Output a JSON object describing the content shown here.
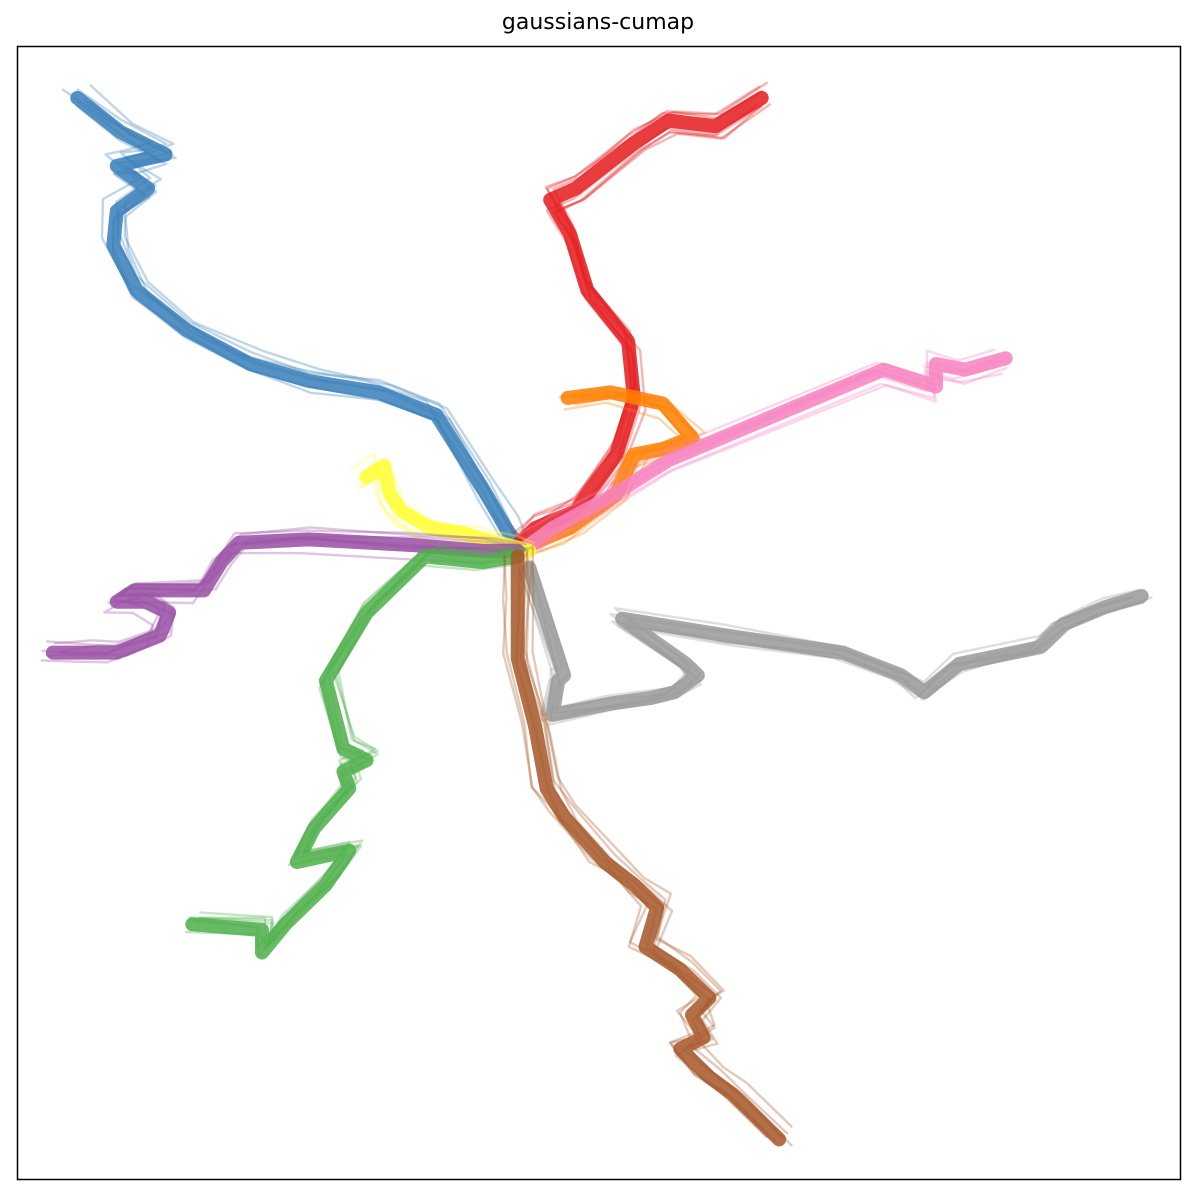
{
  "chart_data": {
    "type": "line",
    "title": "gaussians-cumap",
    "xlabel": "",
    "ylabel": "",
    "xlim": [
      0,
      1
    ],
    "ylim": [
      0,
      1
    ],
    "axis_ticks": false,
    "grid": false,
    "legend": "none",
    "bundle": {
      "strands_per_series": 7,
      "spread": 0.011,
      "width": 2.4,
      "opacity": 0.32
    },
    "series": [
      {
        "color": "#377eb8",
        "points": [
          [
            0.051,
            0.955
          ],
          [
            0.088,
            0.925
          ],
          [
            0.127,
            0.905
          ],
          [
            0.105,
            0.9
          ],
          [
            0.085,
            0.895
          ],
          [
            0.112,
            0.875
          ],
          [
            0.085,
            0.855
          ],
          [
            0.082,
            0.825
          ],
          [
            0.102,
            0.785
          ],
          [
            0.145,
            0.75
          ],
          [
            0.2,
            0.72
          ],
          [
            0.25,
            0.705
          ],
          [
            0.31,
            0.695
          ],
          [
            0.36,
            0.675
          ],
          [
            0.4,
            0.61
          ],
          [
            0.42,
            0.575
          ],
          [
            0.43,
            0.56
          ]
        ]
      },
      {
        "color": "#e41a1c",
        "points": [
          [
            0.64,
            0.955
          ],
          [
            0.6,
            0.93
          ],
          [
            0.56,
            0.935
          ],
          [
            0.53,
            0.915
          ],
          [
            0.48,
            0.875
          ],
          [
            0.458,
            0.865
          ],
          [
            0.475,
            0.835
          ],
          [
            0.49,
            0.785
          ],
          [
            0.525,
            0.74
          ],
          [
            0.53,
            0.69
          ],
          [
            0.515,
            0.64
          ],
          [
            0.48,
            0.59
          ],
          [
            0.445,
            0.575
          ],
          [
            0.43,
            0.56
          ]
        ]
      },
      {
        "color": "#ff7f00",
        "points": [
          [
            0.473,
            0.69
          ],
          [
            0.51,
            0.695
          ],
          [
            0.555,
            0.685
          ],
          [
            0.58,
            0.655
          ],
          [
            0.555,
            0.645
          ],
          [
            0.53,
            0.64
          ],
          [
            0.515,
            0.605
          ],
          [
            0.475,
            0.575
          ],
          [
            0.44,
            0.56
          ]
        ]
      },
      {
        "color": "#f781bf",
        "points": [
          [
            0.85,
            0.725
          ],
          [
            0.815,
            0.715
          ],
          [
            0.79,
            0.72
          ],
          [
            0.79,
            0.7
          ],
          [
            0.745,
            0.715
          ],
          [
            0.56,
            0.635
          ],
          [
            0.505,
            0.6
          ],
          [
            0.46,
            0.575
          ],
          [
            0.44,
            0.56
          ]
        ]
      },
      {
        "color": "#ffff33",
        "points": [
          [
            0.3,
            0.62
          ],
          [
            0.315,
            0.63
          ],
          [
            0.32,
            0.605
          ],
          [
            0.33,
            0.59
          ],
          [
            0.355,
            0.575
          ],
          [
            0.385,
            0.57
          ],
          [
            0.4,
            0.565
          ],
          [
            0.42,
            0.56
          ],
          [
            0.44,
            0.555
          ]
        ]
      },
      {
        "color": "#984ea3",
        "points": [
          [
            0.03,
            0.465
          ],
          [
            0.06,
            0.465
          ],
          [
            0.085,
            0.465
          ],
          [
            0.122,
            0.48
          ],
          [
            0.13,
            0.5
          ],
          [
            0.11,
            0.51
          ],
          [
            0.085,
            0.51
          ],
          [
            0.1,
            0.52
          ],
          [
            0.16,
            0.52
          ],
          [
            0.175,
            0.545
          ],
          [
            0.19,
            0.562
          ],
          [
            0.25,
            0.565
          ],
          [
            0.34,
            0.56
          ],
          [
            0.4,
            0.555
          ],
          [
            0.43,
            0.555
          ]
        ]
      },
      {
        "color": "#999999",
        "points": [
          [
            0.967,
            0.515
          ],
          [
            0.935,
            0.505
          ],
          [
            0.9,
            0.49
          ],
          [
            0.88,
            0.47
          ],
          [
            0.81,
            0.455
          ],
          [
            0.78,
            0.43
          ],
          [
            0.76,
            0.445
          ],
          [
            0.71,
            0.465
          ],
          [
            0.61,
            0.48
          ],
          [
            0.52,
            0.495
          ],
          [
            0.575,
            0.455
          ],
          [
            0.585,
            0.445
          ],
          [
            0.565,
            0.43
          ],
          [
            0.545,
            0.425
          ],
          [
            0.51,
            0.42
          ],
          [
            0.46,
            0.41
          ],
          [
            0.465,
            0.44
          ],
          [
            0.47,
            0.445
          ],
          [
            0.44,
            0.54
          ]
        ]
      },
      {
        "color": "#4daf4a",
        "points": [
          [
            0.15,
            0.225
          ],
          [
            0.21,
            0.22
          ],
          [
            0.21,
            0.2
          ],
          [
            0.23,
            0.225
          ],
          [
            0.265,
            0.26
          ],
          [
            0.285,
            0.29
          ],
          [
            0.24,
            0.28
          ],
          [
            0.255,
            0.31
          ],
          [
            0.285,
            0.345
          ],
          [
            0.28,
            0.36
          ],
          [
            0.3,
            0.37
          ],
          [
            0.28,
            0.38
          ],
          [
            0.265,
            0.44
          ],
          [
            0.3,
            0.5
          ],
          [
            0.35,
            0.55
          ],
          [
            0.4,
            0.545
          ],
          [
            0.43,
            0.55
          ]
        ]
      },
      {
        "color": "#a65628",
        "points": [
          [
            0.655,
            0.035
          ],
          [
            0.615,
            0.075
          ],
          [
            0.595,
            0.09
          ],
          [
            0.57,
            0.115
          ],
          [
            0.59,
            0.125
          ],
          [
            0.58,
            0.145
          ],
          [
            0.595,
            0.16
          ],
          [
            0.57,
            0.185
          ],
          [
            0.54,
            0.205
          ],
          [
            0.55,
            0.24
          ],
          [
            0.53,
            0.26
          ],
          [
            0.505,
            0.28
          ],
          [
            0.47,
            0.32
          ],
          [
            0.455,
            0.345
          ],
          [
            0.445,
            0.4
          ],
          [
            0.43,
            0.46
          ],
          [
            0.43,
            0.51
          ],
          [
            0.43,
            0.55
          ]
        ]
      }
    ]
  }
}
